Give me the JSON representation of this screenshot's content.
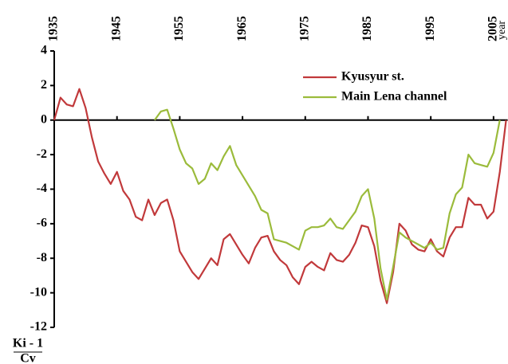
{
  "chart_data": {
    "type": "line",
    "ylabel": {
      "numerator": "Ki - 1",
      "denominator": "Cv"
    },
    "xlabel": "year",
    "x": [
      1935,
      1936,
      1937,
      1938,
      1939,
      1940,
      1941,
      1942,
      1943,
      1944,
      1945,
      1946,
      1947,
      1948,
      1949,
      1950,
      1951,
      1952,
      1953,
      1954,
      1955,
      1956,
      1957,
      1958,
      1959,
      1960,
      1961,
      1962,
      1963,
      1964,
      1965,
      1966,
      1967,
      1968,
      1969,
      1970,
      1971,
      1972,
      1973,
      1974,
      1975,
      1976,
      1977,
      1978,
      1979,
      1980,
      1981,
      1982,
      1983,
      1984,
      1985,
      1986,
      1987,
      1988,
      1989,
      1990,
      1991,
      1992,
      1993,
      1994,
      1995,
      1996,
      1997,
      1998,
      1999,
      2000,
      2001,
      2002,
      2003,
      2004,
      2005,
      2006,
      2007
    ],
    "series": [
      {
        "name": "Kyusyur st.",
        "color": "#c1393b",
        "values": [
          0,
          1.3,
          0.9,
          0.8,
          1.8,
          0.7,
          -1.0,
          -2.4,
          -3.1,
          -3.7,
          -3.0,
          -4.1,
          -4.6,
          -5.6,
          -5.8,
          -4.6,
          -5.5,
          -4.8,
          -4.6,
          -5.8,
          -7.6,
          -8.2,
          -8.8,
          -9.2,
          -8.6,
          -8.0,
          -8.4,
          -6.9,
          -6.6,
          -7.2,
          -7.8,
          -8.3,
          -7.4,
          -6.8,
          -6.7,
          -7.6,
          -8.1,
          -8.4,
          -9.1,
          -9.5,
          -8.5,
          -8.2,
          -8.5,
          -8.7,
          -7.7,
          -8.1,
          -8.2,
          -7.8,
          -7.1,
          -6.1,
          -6.2,
          -7.3,
          -9.3,
          -10.6,
          -8.8,
          -6.0,
          -6.4,
          -7.2,
          -7.5,
          -7.6,
          -6.9,
          -7.6,
          -7.9,
          -6.8,
          -6.2,
          -6.2,
          -4.5,
          -4.9,
          -4.9,
          -5.7,
          -5.3,
          -3.0,
          0
        ]
      },
      {
        "name": "Main Lena channel",
        "color": "#9bbb3b",
        "values": [
          null,
          null,
          null,
          null,
          null,
          null,
          null,
          null,
          null,
          null,
          null,
          null,
          null,
          null,
          null,
          null,
          0,
          0.5,
          0.6,
          -0.5,
          -1.7,
          -2.5,
          -2.8,
          -3.7,
          -3.4,
          -2.5,
          -2.9,
          -2.1,
          -1.5,
          -2.6,
          -3.2,
          -3.8,
          -4.4,
          -5.2,
          -5.4,
          -6.9,
          -7.0,
          -7.1,
          -7.3,
          -7.5,
          -6.4,
          -6.2,
          -6.2,
          -6.1,
          -5.7,
          -6.2,
          -6.3,
          -5.8,
          -5.3,
          -4.4,
          -4.0,
          -5.7,
          -8.6,
          -10.4,
          -8.5,
          -6.5,
          -6.8,
          -7.0,
          -7.2,
          -7.4,
          -7.1,
          -7.5,
          -7.4,
          -5.4,
          -4.3,
          -3.9,
          -2.0,
          -2.5,
          -2.6,
          -2.7,
          -1.9,
          0,
          null
        ]
      }
    ],
    "xlim": [
      1935,
      2007
    ],
    "ylim": [
      -12,
      4
    ],
    "xticks": [
      1935,
      1945,
      1955,
      1965,
      1975,
      1985,
      1995,
      2005
    ],
    "yticks": [
      -12,
      -10,
      -8,
      -6,
      -4,
      -2,
      0,
      2,
      4
    ],
    "legend": "upper right",
    "grid": false
  }
}
